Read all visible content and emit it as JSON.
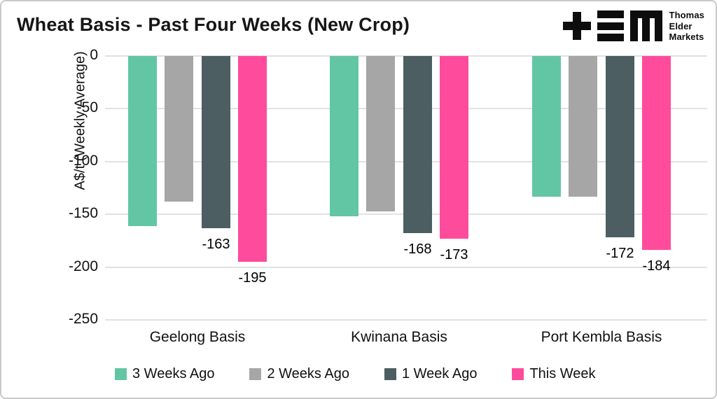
{
  "title": "Wheat Basis - Past Four Weeks (New Crop)",
  "logo": {
    "lines": [
      "Thomas",
      "Elder",
      "Markets"
    ]
  },
  "colors": {
    "teal": "#62C6A4",
    "gray": "#A6A6A6",
    "slate": "#4C5E62",
    "pink": "#FF4B9B",
    "grid": "#E2E2E2",
    "text": "#111111"
  },
  "chart_data": {
    "type": "bar",
    "title": "Wheat Basis - Past Four Weeks (New Crop)",
    "xlabel": "",
    "ylabel": "A$/t (Weekly Average)",
    "ylim": [
      -250,
      0
    ],
    "yticks": [
      0,
      -50,
      -100,
      -150,
      -200,
      -250
    ],
    "grid": true,
    "legend_position": "bottom",
    "categories": [
      "Geelong Basis",
      "Kwinana Basis",
      "Port Kembla Basis"
    ],
    "series": [
      {
        "name": "3 Weeks Ago",
        "color": "#62C6A4",
        "values": [
          -161,
          -152,
          -133
        ],
        "show_labels": false
      },
      {
        "name": "2 Weeks Ago",
        "color": "#A6A6A6",
        "values": [
          -138,
          -147,
          -133
        ],
        "show_labels": false
      },
      {
        "name": "1 Week Ago",
        "color": "#4C5E62",
        "values": [
          -163,
          -168,
          -172
        ],
        "show_labels": true
      },
      {
        "name": "This Week",
        "color": "#FF4B9B",
        "values": [
          -195,
          -173,
          -184
        ],
        "show_labels": true
      }
    ],
    "data_labels": {
      "1 Week Ago": [
        "-163",
        "-168",
        "-172"
      ],
      "This Week": [
        "-195",
        "-173",
        "-184"
      ]
    }
  }
}
